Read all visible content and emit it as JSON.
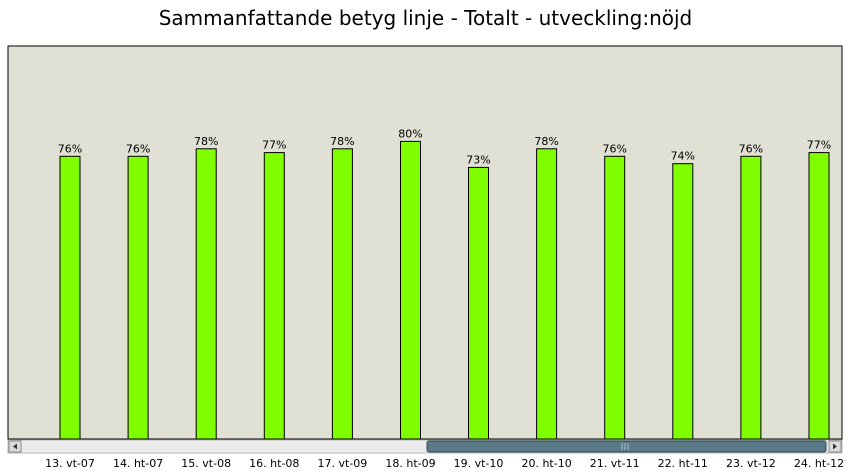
{
  "chart_data": {
    "type": "bar",
    "title": "Sammanfattande betyg linje - Totalt - utveckling:nöjd",
    "categories": [
      "13. vt-07",
      "14. ht-07",
      "15. vt-08",
      "16. ht-08",
      "17. vt-09",
      "18. ht-09",
      "19. vt-10",
      "20. ht-10",
      "21. vt-11",
      "22. ht-11",
      "23. vt-12",
      "24. ht-12"
    ],
    "values": [
      76,
      76,
      78,
      77,
      78,
      80,
      73,
      78,
      76,
      74,
      76,
      77
    ],
    "data_labels": [
      "76%",
      "76%",
      "78%",
      "77%",
      "78%",
      "80%",
      "73%",
      "78%",
      "76%",
      "74%",
      "76%",
      "77%"
    ],
    "xlabel": "",
    "ylabel": "",
    "ylim": [
      0,
      100
    ],
    "grid": false,
    "legend": "none",
    "colors": {
      "bar": "#80ff00",
      "plot_background": "#e0e0d5",
      "scrollbar_thumb": "#5a7a88"
    }
  }
}
